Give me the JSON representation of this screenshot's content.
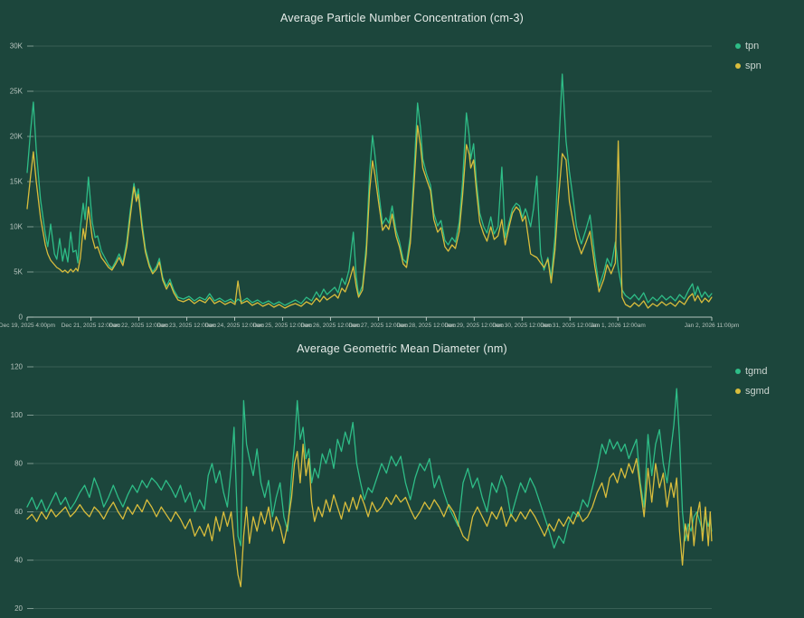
{
  "app": {
    "background": "#1c463c",
    "colors": {
      "grid_line": "rgba(210,228,220,0.16)",
      "axis_line": "rgba(205,218,212,0.85)",
      "tick_text": "#b7c4be",
      "title_text": "#e7edea",
      "legend_text": "#ccd6d1"
    }
  },
  "chart_data": [
    {
      "type": "line",
      "title": "Average Particle Number Concentration (cm-3)",
      "legend_position": "top-right",
      "grid": "horizontal",
      "y_unit": "K (thousands, cm-3)",
      "ylim": [
        0,
        30
      ],
      "y_tick_values": [
        0,
        5,
        10,
        15,
        20,
        25,
        30
      ],
      "y_tick_labels": [
        "0",
        "5K",
        "10K",
        "15K",
        "20K",
        "25K",
        "30K"
      ],
      "x_range_days": [
        0,
        14.2917
      ],
      "x_tick_days": [
        0,
        1.333,
        2.333,
        3.333,
        4.333,
        5.333,
        6.333,
        7.333,
        8.333,
        9.333,
        10.333,
        11.333,
        12.333,
        14.2917
      ],
      "x_tick_labels": [
        "Dec 19, 2025 4:00pm",
        "Dec 21, 2025 12:00am",
        "Dec 22, 2025 12:00am",
        "Dec 23, 2025 12:00am",
        "Dec 24, 2025 12:00am",
        "Dec 25, 2025 12:00am",
        "Dec 26, 2025 12:00am",
        "Dec 27, 2025 12:00am",
        "Dec 28, 2025 12:00am",
        "Dec 29, 2025 12:00am",
        "Dec 30, 2025 12:00am",
        "Dec 31, 2025 12:00am",
        "Jan 1, 2026 12:00am",
        "Jan 2, 2026 11:00pm"
      ],
      "x_days": [
        0.0,
        0.07,
        0.13,
        0.19,
        0.28,
        0.38,
        0.43,
        0.49,
        0.57,
        0.62,
        0.68,
        0.74,
        0.79,
        0.85,
        0.91,
        0.96,
        1.02,
        1.06,
        1.11,
        1.17,
        1.21,
        1.28,
        1.36,
        1.42,
        1.47,
        1.55,
        1.62,
        1.7,
        1.77,
        1.85,
        1.92,
        2.0,
        2.08,
        2.15,
        2.23,
        2.28,
        2.32,
        2.4,
        2.47,
        2.55,
        2.62,
        2.7,
        2.76,
        2.83,
        2.91,
        2.98,
        3.06,
        3.15,
        3.26,
        3.38,
        3.49,
        3.6,
        3.72,
        3.81,
        3.91,
        4.02,
        4.13,
        4.25,
        4.34,
        4.4,
        4.47,
        4.59,
        4.7,
        4.81,
        4.92,
        5.04,
        5.15,
        5.26,
        5.38,
        5.49,
        5.6,
        5.72,
        5.83,
        5.94,
        6.04,
        6.11,
        6.19,
        6.26,
        6.34,
        6.42,
        6.49,
        6.57,
        6.64,
        6.72,
        6.81,
        6.87,
        6.92,
        7.0,
        7.08,
        7.15,
        7.21,
        7.26,
        7.34,
        7.42,
        7.49,
        7.55,
        7.62,
        7.7,
        7.77,
        7.85,
        7.92,
        8.0,
        8.08,
        8.15,
        8.21,
        8.26,
        8.34,
        8.42,
        8.49,
        8.57,
        8.64,
        8.72,
        8.79,
        8.87,
        8.94,
        9.02,
        9.09,
        9.17,
        9.23,
        9.26,
        9.32,
        9.38,
        9.45,
        9.53,
        9.6,
        9.68,
        9.75,
        9.83,
        9.91,
        9.98,
        10.06,
        10.13,
        10.21,
        10.28,
        10.34,
        10.4,
        10.43,
        10.51,
        10.57,
        10.64,
        10.72,
        10.79,
        10.87,
        10.94,
        11.02,
        11.09,
        11.17,
        11.25,
        11.32,
        11.4,
        11.47,
        11.57,
        11.66,
        11.75,
        11.85,
        11.94,
        12.04,
        12.11,
        12.19,
        12.28,
        12.34,
        12.42,
        12.49,
        12.59,
        12.68,
        12.77,
        12.87,
        12.96,
        13.06,
        13.15,
        13.25,
        13.34,
        13.43,
        13.53,
        13.62,
        13.72,
        13.81,
        13.89,
        13.94,
        14.0,
        14.08,
        14.15,
        14.23,
        14.29
      ],
      "series": [
        {
          "name": "tpn",
          "color": "#2ebd87",
          "values": [
            16.0,
            20.5,
            23.8,
            18.5,
            13.0,
            9.2,
            7.8,
            10.3,
            7.0,
            6.4,
            8.7,
            6.2,
            7.6,
            6.1,
            9.4,
            7.2,
            7.4,
            6.0,
            9.9,
            12.6,
            10.8,
            15.5,
            10.5,
            8.8,
            9.0,
            7.3,
            6.6,
            5.8,
            5.4,
            6.2,
            7.0,
            6.0,
            8.4,
            11.7,
            14.8,
            13.2,
            14.2,
            10.4,
            7.6,
            5.9,
            5.0,
            5.6,
            6.5,
            4.4,
            3.4,
            4.2,
            3.0,
            2.2,
            2.0,
            2.3,
            1.8,
            2.2,
            1.9,
            2.6,
            1.8,
            2.1,
            1.7,
            2.0,
            1.6,
            2.0,
            1.7,
            2.1,
            1.6,
            1.9,
            1.5,
            1.8,
            1.4,
            1.7,
            1.3,
            1.6,
            1.9,
            1.5,
            2.2,
            1.8,
            2.8,
            2.2,
            3.1,
            2.5,
            2.9,
            3.3,
            2.7,
            4.3,
            3.6,
            5.2,
            9.4,
            4.5,
            2.4,
            3.5,
            8.0,
            16.0,
            20.1,
            18.0,
            13.8,
            10.3,
            11.0,
            10.4,
            12.3,
            9.6,
            8.4,
            6.4,
            6.0,
            9.0,
            16.5,
            23.7,
            21.0,
            17.5,
            15.8,
            14.6,
            11.5,
            10.1,
            10.7,
            8.5,
            8.0,
            8.8,
            8.3,
            10.5,
            15.0,
            22.6,
            20.0,
            17.5,
            19.2,
            15.0,
            11.5,
            10.0,
            9.3,
            11.1,
            9.2,
            10.0,
            16.6,
            8.8,
            10.5,
            12.0,
            12.6,
            12.3,
            11.0,
            12.0,
            11.6,
            10.0,
            12.0,
            15.6,
            7.0,
            5.2,
            6.6,
            4.4,
            9.0,
            18.0,
            26.9,
            19.5,
            16.1,
            13.0,
            10.0,
            8.1,
            9.6,
            11.3,
            6.8,
            3.4,
            5.0,
            6.5,
            5.6,
            8.3,
            5.4,
            3.0,
            2.4,
            2.0,
            2.5,
            1.9,
            2.7,
            1.6,
            2.2,
            1.8,
            2.4,
            1.9,
            2.3,
            1.8,
            2.5,
            2.0,
            3.0,
            3.7,
            2.4,
            3.4,
            2.2,
            2.8,
            2.2,
            2.6
          ]
        },
        {
          "name": "spn",
          "color": "#d9bd3c",
          "values": [
            12.0,
            15.5,
            18.3,
            15.0,
            11.0,
            8.0,
            7.0,
            6.3,
            5.8,
            5.5,
            5.3,
            5.0,
            5.2,
            4.9,
            5.3,
            5.0,
            5.4,
            5.1,
            6.5,
            9.8,
            8.6,
            12.2,
            8.8,
            7.6,
            7.8,
            6.6,
            6.1,
            5.5,
            5.2,
            5.9,
            6.6,
            5.7,
            7.8,
            11.0,
            14.4,
            12.8,
            13.6,
            9.8,
            7.2,
            5.6,
            4.8,
            5.3,
            6.1,
            4.1,
            3.1,
            3.8,
            2.7,
            1.9,
            1.7,
            2.0,
            1.5,
            1.9,
            1.6,
            2.2,
            1.5,
            1.8,
            1.4,
            1.7,
            1.4,
            4.0,
            1.5,
            1.8,
            1.3,
            1.6,
            1.2,
            1.5,
            1.1,
            1.4,
            1.0,
            1.3,
            1.5,
            1.2,
            1.7,
            1.4,
            2.1,
            1.7,
            2.3,
            1.9,
            2.2,
            2.5,
            2.1,
            3.2,
            2.8,
            3.9,
            5.6,
            3.4,
            2.2,
            3.0,
            7.0,
            14.0,
            17.3,
            15.8,
            12.6,
            9.6,
            10.2,
            9.7,
            11.4,
            9.0,
            7.8,
            5.9,
            5.5,
            8.2,
            15.0,
            21.2,
            19.0,
            16.5,
            15.2,
            14.0,
            10.8,
            9.4,
            9.9,
            7.8,
            7.3,
            8.0,
            7.6,
            9.5,
            13.5,
            19.1,
            18.0,
            16.5,
            17.4,
            14.0,
            10.5,
            9.2,
            8.4,
            10.0,
            8.6,
            9.0,
            10.8,
            8.0,
            10.0,
            11.5,
            12.2,
            11.8,
            10.6,
            11.2,
            10.0,
            7.0,
            6.8,
            6.6,
            6.0,
            5.5,
            6.4,
            3.8,
            7.5,
            13.0,
            18.1,
            17.4,
            12.8,
            10.5,
            8.6,
            7.0,
            8.2,
            9.5,
            5.6,
            2.8,
            4.2,
            5.8,
            4.8,
            6.0,
            19.5,
            2.2,
            1.4,
            1.1,
            1.6,
            1.2,
            1.8,
            1.0,
            1.5,
            1.2,
            1.7,
            1.3,
            1.6,
            1.2,
            1.8,
            1.4,
            2.2,
            2.6,
            1.8,
            2.4,
            1.6,
            2.1,
            1.7,
            2.2
          ]
        }
      ]
    },
    {
      "type": "line",
      "title": "Average Geometric Mean Diameter (nm)",
      "legend_position": "top-right",
      "grid": "horizontal",
      "y_unit": "nm",
      "ylim": [
        20,
        120
      ],
      "y_tick_values": [
        20,
        40,
        60,
        80,
        100,
        120
      ],
      "y_tick_labels": [
        "20",
        "40",
        "60",
        "80",
        "100",
        "120"
      ],
      "x_range_days": [
        0,
        14.2917
      ],
      "x_axis_visible": false,
      "x_days": [
        0.0,
        0.1,
        0.2,
        0.3,
        0.4,
        0.5,
        0.6,
        0.7,
        0.8,
        0.9,
        1.0,
        1.1,
        1.2,
        1.3,
        1.4,
        1.5,
        1.6,
        1.7,
        1.8,
        1.9,
        2.0,
        2.1,
        2.2,
        2.3,
        2.4,
        2.5,
        2.6,
        2.7,
        2.8,
        2.9,
        3.0,
        3.1,
        3.2,
        3.3,
        3.4,
        3.5,
        3.6,
        3.7,
        3.78,
        3.86,
        3.94,
        4.02,
        4.1,
        4.18,
        4.26,
        4.32,
        4.4,
        4.46,
        4.52,
        4.58,
        4.64,
        4.72,
        4.8,
        4.88,
        4.96,
        5.04,
        5.12,
        5.2,
        5.28,
        5.36,
        5.44,
        5.52,
        5.58,
        5.64,
        5.7,
        5.76,
        5.82,
        5.88,
        5.94,
        6.0,
        6.08,
        6.16,
        6.24,
        6.32,
        6.4,
        6.48,
        6.56,
        6.64,
        6.72,
        6.8,
        6.88,
        6.96,
        7.04,
        7.12,
        7.2,
        7.3,
        7.4,
        7.5,
        7.6,
        7.7,
        7.8,
        7.9,
        8.0,
        8.1,
        8.2,
        8.3,
        8.4,
        8.5,
        8.6,
        8.7,
        8.8,
        8.9,
        9.0,
        9.1,
        9.2,
        9.3,
        9.4,
        9.5,
        9.6,
        9.7,
        9.8,
        9.9,
        10.0,
        10.1,
        10.2,
        10.3,
        10.4,
        10.5,
        10.6,
        10.7,
        10.8,
        10.9,
        11.0,
        11.1,
        11.2,
        11.3,
        11.4,
        11.5,
        11.6,
        11.7,
        11.8,
        11.9,
        12.0,
        12.08,
        12.16,
        12.24,
        12.32,
        12.4,
        12.48,
        12.56,
        12.64,
        12.72,
        12.8,
        12.88,
        12.96,
        13.04,
        13.12,
        13.2,
        13.28,
        13.36,
        13.44,
        13.5,
        13.56,
        13.62,
        13.68,
        13.74,
        13.8,
        13.86,
        13.92,
        13.98,
        14.04,
        14.1,
        14.16,
        14.22,
        14.26,
        14.29
      ],
      "series": [
        {
          "name": "tgmd",
          "color": "#2ebd87",
          "values": [
            62,
            66,
            61,
            65,
            60,
            64,
            68,
            63,
            66,
            61,
            64,
            68,
            71,
            66,
            74,
            69,
            62,
            66,
            71,
            66,
            62,
            67,
            71,
            68,
            73,
            70,
            74,
            72,
            69,
            73,
            70,
            66,
            71,
            64,
            68,
            60,
            65,
            61,
            75,
            80,
            72,
            77,
            68,
            62,
            78,
            95,
            50,
            46,
            106,
            88,
            82,
            75,
            86,
            72,
            66,
            73,
            58,
            66,
            72,
            58,
            52,
            75,
            88,
            106,
            90,
            95,
            82,
            86,
            72,
            78,
            74,
            84,
            80,
            86,
            78,
            90,
            85,
            93,
            88,
            97,
            80,
            72,
            65,
            70,
            68,
            74,
            80,
            76,
            83,
            79,
            83,
            72,
            65,
            74,
            80,
            77,
            82,
            70,
            75,
            68,
            62,
            58,
            54,
            72,
            78,
            70,
            74,
            66,
            60,
            72,
            68,
            75,
            70,
            58,
            65,
            72,
            68,
            74,
            70,
            64,
            58,
            52,
            45,
            50,
            47,
            55,
            60,
            58,
            65,
            62,
            70,
            78,
            88,
            84,
            90,
            86,
            89,
            85,
            88,
            82,
            86,
            90,
            72,
            62,
            92,
            75,
            88,
            94,
            80,
            72,
            86,
            96,
            111,
            90,
            60,
            48,
            55,
            52,
            58,
            60,
            56,
            52,
            58,
            54,
            57,
            52
          ]
        },
        {
          "name": "sgmd",
          "color": "#d9bd3c",
          "values": [
            57,
            59,
            56,
            60,
            57,
            61,
            58,
            60,
            62,
            58,
            60,
            63,
            60,
            58,
            62,
            60,
            57,
            61,
            64,
            60,
            57,
            62,
            59,
            63,
            60,
            65,
            62,
            58,
            62,
            59,
            56,
            60,
            57,
            53,
            57,
            50,
            54,
            50,
            55,
            48,
            58,
            52,
            60,
            54,
            60,
            48,
            34,
            29,
            50,
            62,
            47,
            58,
            52,
            60,
            55,
            62,
            52,
            58,
            54,
            47,
            55,
            66,
            80,
            85,
            72,
            88,
            75,
            82,
            64,
            56,
            62,
            58,
            65,
            60,
            67,
            62,
            57,
            64,
            60,
            66,
            61,
            67,
            63,
            58,
            64,
            60,
            62,
            66,
            63,
            67,
            64,
            66,
            61,
            57,
            60,
            64,
            61,
            65,
            62,
            58,
            63,
            60,
            55,
            50,
            48,
            58,
            62,
            58,
            54,
            60,
            57,
            62,
            54,
            59,
            56,
            60,
            57,
            61,
            58,
            54,
            50,
            55,
            52,
            57,
            54,
            58,
            55,
            60,
            56,
            58,
            62,
            68,
            72,
            66,
            74,
            76,
            72,
            78,
            74,
            80,
            76,
            82,
            70,
            58,
            78,
            64,
            80,
            70,
            76,
            62,
            72,
            66,
            74,
            52,
            38,
            55,
            48,
            62,
            46,
            58,
            64,
            48,
            62,
            46,
            60,
            48
          ]
        }
      ]
    }
  ]
}
